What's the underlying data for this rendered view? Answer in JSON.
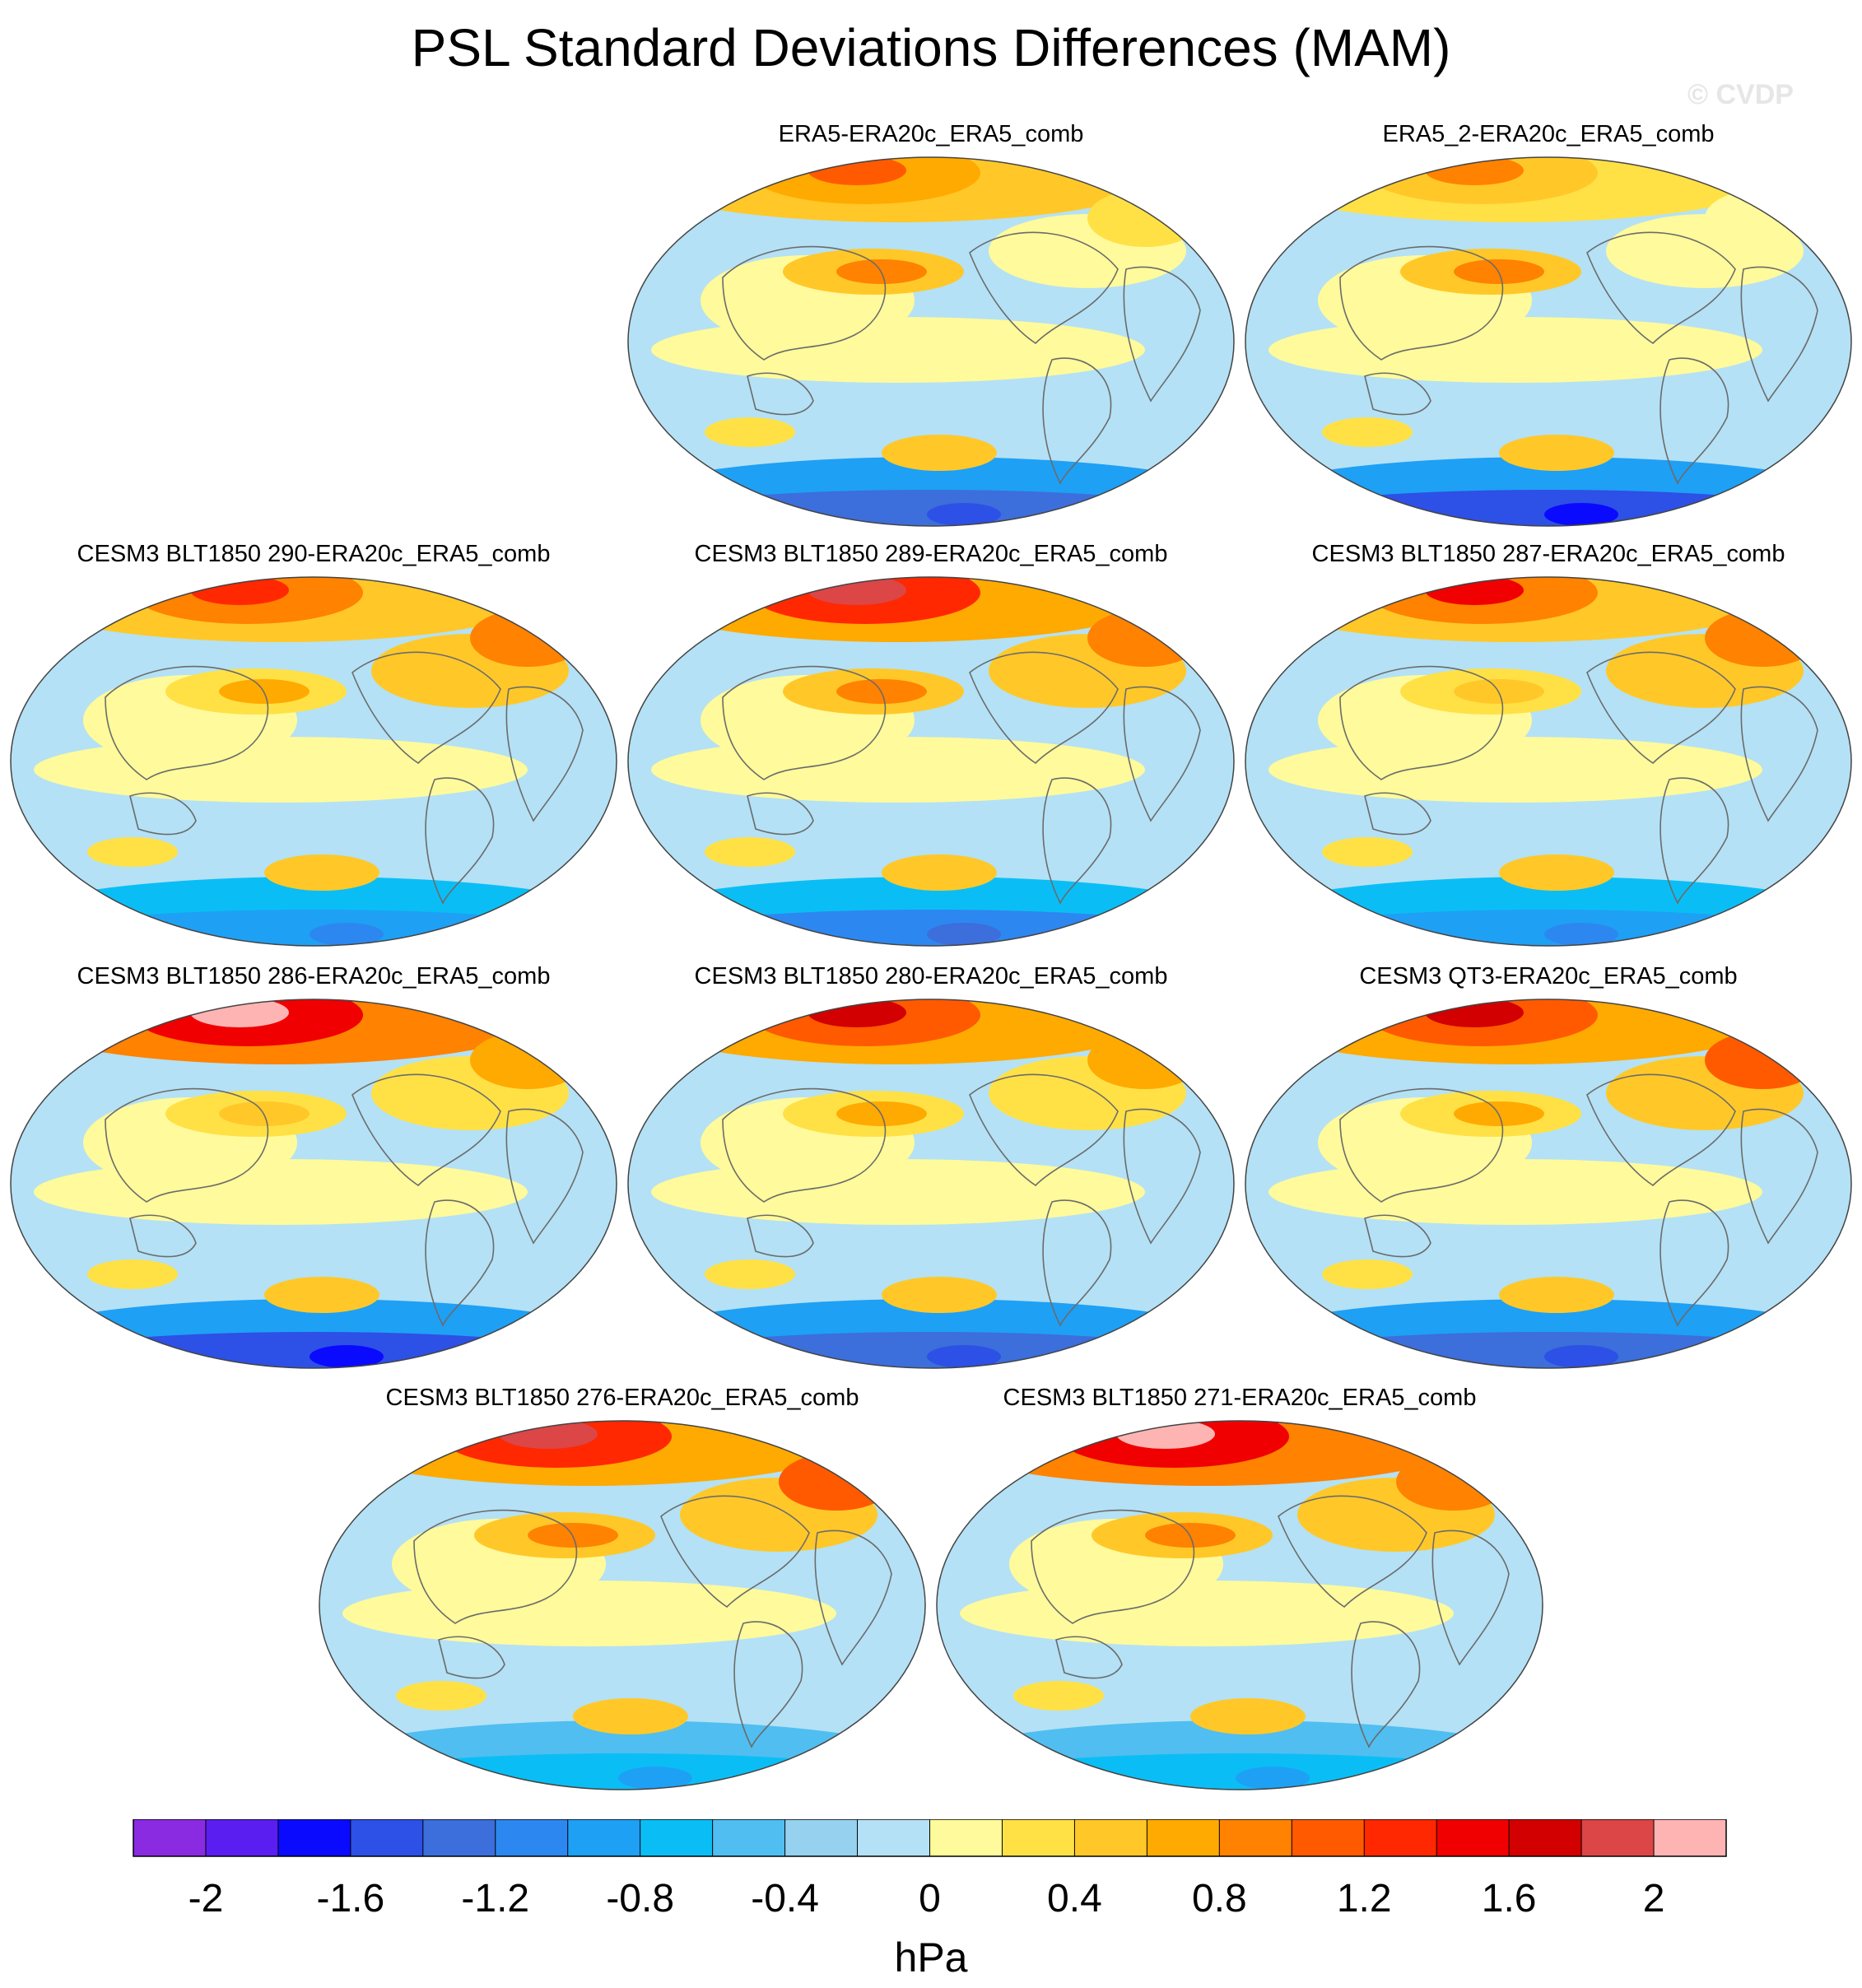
{
  "title": "PSL Standard Deviations Differences (MAM)",
  "watermark": "© CVDP",
  "chart_data": {
    "type": "heatmap",
    "variable": "PSL standard deviation difference",
    "season": "MAM",
    "units": "hPa",
    "projection": "global map",
    "panels": [
      {
        "title": "ERA5-ERA20c_ERA5_comb",
        "north_max": 1.0,
        "south_min": -1.6,
        "pacific_lobe": 0.8,
        "north_atlantic": 0.2
      },
      {
        "title": "ERA5_2-ERA20c_ERA5_comb",
        "north_max": 0.8,
        "south_min": -1.8,
        "pacific_lobe": 0.8,
        "north_atlantic": 0.1
      },
      {
        "title": "CESM3 BLT1850 290-ERA20c_ERA5_comb",
        "north_max": 1.2,
        "south_min": -1.2,
        "pacific_lobe": 0.6,
        "north_atlantic": 0.8
      },
      {
        "title": "CESM3 BLT1850 289-ERA20c_ERA5_comb",
        "north_max": 1.8,
        "south_min": -1.4,
        "pacific_lobe": 0.8,
        "north_atlantic": 0.8
      },
      {
        "title": "CESM3 BLT1850 287-ERA20c_ERA5_comb",
        "north_max": 1.4,
        "south_min": -1.2,
        "pacific_lobe": 0.4,
        "north_atlantic": 0.8
      },
      {
        "title": "CESM3 BLT1850 286-ERA20c_ERA5_comb",
        "north_max": 2.0,
        "south_min": -1.8,
        "pacific_lobe": 0.4,
        "north_atlantic": 0.6
      },
      {
        "title": "CESM3 BLT1850 280-ERA20c_ERA5_comb",
        "north_max": 1.6,
        "south_min": -1.6,
        "pacific_lobe": 0.6,
        "north_atlantic": 0.6
      },
      {
        "title": "CESM3 QT3-ERA20c_ERA5_comb",
        "north_max": 1.6,
        "south_min": -1.6,
        "pacific_lobe": 0.6,
        "north_atlantic": 1.0
      },
      {
        "title": "CESM3 BLT1850 276-ERA20c_ERA5_comb",
        "north_max": 1.8,
        "south_min": -1.0,
        "pacific_lobe": 0.8,
        "north_atlantic": 1.0
      },
      {
        "title": "CESM3 BLT1850 271-ERA20c_ERA5_comb",
        "north_max": 2.2,
        "south_min": -1.0,
        "pacific_lobe": 0.8,
        "north_atlantic": 0.8
      }
    ],
    "colorbar": {
      "label": "hPa",
      "levels": [
        -2.2,
        -2.0,
        -1.8,
        -1.6,
        -1.4,
        -1.2,
        -1.0,
        -0.8,
        -0.6,
        -0.4,
        -0.2,
        0.0,
        0.2,
        0.4,
        0.6,
        0.8,
        1.0,
        1.2,
        1.4,
        1.6,
        1.8,
        2.0,
        2.2
      ],
      "colors": [
        "#8a2be2",
        "#5a1ef0",
        "#0a0aff",
        "#2d50e6",
        "#3c6edc",
        "#2d87f0",
        "#1ea0f5",
        "#0abef5",
        "#50bef0",
        "#96d2f0",
        "#b4e1f5",
        "#fffa9b",
        "#ffe146",
        "#ffc828",
        "#ffaa00",
        "#ff8200",
        "#ff5a00",
        "#ff2800",
        "#f00000",
        "#d20000",
        "#dc4646",
        "#ffb4b4"
      ],
      "tick_values": [
        -2,
        -1.6,
        -1.2,
        -0.8,
        -0.4,
        0,
        0.4,
        0.8,
        1.2,
        1.6,
        2
      ],
      "tick_labels": [
        "-2",
        "-1.6",
        "-1.2",
        "-0.8",
        "-0.4",
        "0",
        "0.4",
        "0.8",
        "1.2",
        "1.6",
        "2"
      ]
    }
  }
}
